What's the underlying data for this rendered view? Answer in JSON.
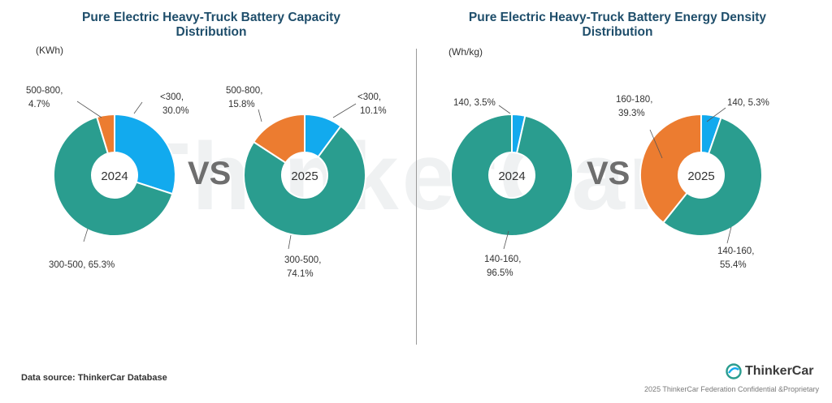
{
  "titles": {
    "left": "Pure Electric Heavy-Truck Battery Capacity Distribution",
    "right": "Pure Electric Heavy-Truck Battery Energy Density Distribution"
  },
  "units": {
    "left": "(KWh)",
    "right": "(Wh/kg)"
  },
  "vs_label": "VS",
  "watermark": "ThinkerCar",
  "footer": {
    "source": "Data source: ThinkerCar Database",
    "brand": "ThinkerCar",
    "copyright": "2025 ThinkerCar Federation Confidential &Proprietary"
  },
  "colors": {
    "blue": "#12aaee",
    "teal": "#2a9d8f",
    "orange": "#ec7c30",
    "title": "#1f4e6b"
  },
  "chart_data": [
    {
      "type": "pie",
      "donut": true,
      "title": "Pure Electric Heavy-Truck Battery Capacity Distribution",
      "unit": "(KWh)",
      "center_label": "2024",
      "slices": [
        {
          "label": "<300",
          "value": 30.0,
          "text": "<300,",
          "pct": "30.0%",
          "color": "#12aaee"
        },
        {
          "label": "300-500",
          "value": 65.3,
          "text": "300-500, 65.3%",
          "pct": "",
          "color": "#2a9d8f"
        },
        {
          "label": "500-800",
          "value": 4.7,
          "text": "500-800,",
          "pct": "4.7%",
          "color": "#ec7c30"
        }
      ]
    },
    {
      "type": "pie",
      "donut": true,
      "title": "Pure Electric Heavy-Truck Battery Capacity Distribution",
      "unit": "(KWh)",
      "center_label": "2025",
      "slices": [
        {
          "label": "<300",
          "value": 10.1,
          "text": "<300,",
          "pct": "10.1%",
          "color": "#12aaee"
        },
        {
          "label": "300-500",
          "value": 74.1,
          "text": "300-500,",
          "pct": "74.1%",
          "color": "#2a9d8f"
        },
        {
          "label": "500-800",
          "value": 15.8,
          "text": "500-800,",
          "pct": "15.8%",
          "color": "#ec7c30"
        }
      ]
    },
    {
      "type": "pie",
      "donut": true,
      "title": "Pure Electric Heavy-Truck Battery Energy Density Distribution",
      "unit": "(Wh/kg)",
      "center_label": "2024",
      "slices": [
        {
          "label": "140",
          "value": 3.5,
          "text": "140, 3.5%",
          "pct": "",
          "color": "#12aaee"
        },
        {
          "label": "140-160",
          "value": 96.5,
          "text": "140-160,",
          "pct": "96.5%",
          "color": "#2a9d8f"
        }
      ]
    },
    {
      "type": "pie",
      "donut": true,
      "title": "Pure Electric Heavy-Truck Battery Energy Density Distribution",
      "unit": "(Wh/kg)",
      "center_label": "2025",
      "slices": [
        {
          "label": "140",
          "value": 5.3,
          "text": "140, 5.3%",
          "pct": "",
          "color": "#12aaee"
        },
        {
          "label": "140-160",
          "value": 55.4,
          "text": "140-160,",
          "pct": "55.4%",
          "color": "#2a9d8f"
        },
        {
          "label": "160-180",
          "value": 39.3,
          "text": "160-180,",
          "pct": "39.3%",
          "color": "#ec7c30"
        }
      ]
    }
  ]
}
